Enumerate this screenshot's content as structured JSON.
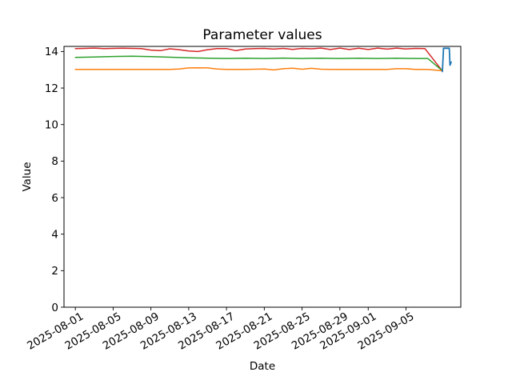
{
  "figure": {
    "background": "#ffffff"
  },
  "chart_data": {
    "type": "line",
    "title": "Parameter values",
    "xlabel": "Date",
    "ylabel": "Value",
    "grid": false,
    "legend": "none",
    "background": "#ffffff",
    "x_axis": {
      "unit": "days_since_2025-08-01",
      "lim": [
        -1.2,
        40.8
      ],
      "tick_rotation_deg": 30,
      "ticks": [
        {
          "label": "2025-08-01",
          "day": 0
        },
        {
          "label": "2025-08-05",
          "day": 4
        },
        {
          "label": "2025-08-09",
          "day": 8
        },
        {
          "label": "2025-08-13",
          "day": 12
        },
        {
          "label": "2025-08-17",
          "day": 16
        },
        {
          "label": "2025-08-21",
          "day": 20
        },
        {
          "label": "2025-08-25",
          "day": 24
        },
        {
          "label": "2025-08-29",
          "day": 28
        },
        {
          "label": "2025-09-01",
          "day": 31
        },
        {
          "label": "2025-09-05",
          "day": 35
        }
      ]
    },
    "y_axis": {
      "lim": [
        0,
        14.28
      ],
      "ticks": [
        0,
        2,
        4,
        6,
        8,
        10,
        12,
        14
      ]
    },
    "series": [
      {
        "name": "red",
        "color": "#d62728",
        "width": 1.5,
        "points": [
          [
            0,
            14.16
          ],
          [
            1,
            14.17
          ],
          [
            2,
            14.19
          ],
          [
            3,
            14.16
          ],
          [
            4,
            14.17
          ],
          [
            5,
            14.18
          ],
          [
            6,
            14.17
          ],
          [
            7,
            14.16
          ],
          [
            8,
            14.08
          ],
          [
            9,
            14.05
          ],
          [
            10,
            14.15
          ],
          [
            11,
            14.1
          ],
          [
            12,
            14.03
          ],
          [
            13,
            14.0
          ],
          [
            14,
            14.1
          ],
          [
            15,
            14.16
          ],
          [
            16,
            14.16
          ],
          [
            17,
            14.05
          ],
          [
            18,
            14.14
          ],
          [
            19,
            14.16
          ],
          [
            20,
            14.17
          ],
          [
            21,
            14.13
          ],
          [
            22,
            14.17
          ],
          [
            23,
            14.12
          ],
          [
            24,
            14.17
          ],
          [
            25,
            14.15
          ],
          [
            26,
            14.19
          ],
          [
            27,
            14.11
          ],
          [
            28,
            14.19
          ],
          [
            29,
            14.11
          ],
          [
            30,
            14.18
          ],
          [
            31,
            14.11
          ],
          [
            32,
            14.19
          ],
          [
            33,
            14.13
          ],
          [
            34,
            14.19
          ],
          [
            35,
            14.14
          ],
          [
            36,
            14.17
          ],
          [
            37,
            14.16
          ],
          [
            38.8,
            12.97
          ]
        ]
      },
      {
        "name": "green",
        "color": "#2ca02c",
        "width": 1.5,
        "points": [
          [
            0,
            13.68
          ],
          [
            2,
            13.7
          ],
          [
            4,
            13.73
          ],
          [
            6,
            13.74
          ],
          [
            8,
            13.72
          ],
          [
            10,
            13.69
          ],
          [
            12,
            13.66
          ],
          [
            14,
            13.63
          ],
          [
            16,
            13.62
          ],
          [
            18,
            13.63
          ],
          [
            20,
            13.62
          ],
          [
            22,
            13.64
          ],
          [
            24,
            13.62
          ],
          [
            26,
            13.63
          ],
          [
            28,
            13.62
          ],
          [
            30,
            13.63
          ],
          [
            32,
            13.62
          ],
          [
            34,
            13.63
          ],
          [
            36,
            13.62
          ],
          [
            37.3,
            13.62
          ],
          [
            38.8,
            12.97
          ]
        ]
      },
      {
        "name": "orange",
        "color": "#ff7f0e",
        "width": 1.5,
        "points": [
          [
            0,
            13.02
          ],
          [
            2,
            13.02
          ],
          [
            4,
            13.02
          ],
          [
            6,
            13.02
          ],
          [
            8,
            13.02
          ],
          [
            10,
            13.02
          ],
          [
            11,
            13.04
          ],
          [
            12,
            13.1
          ],
          [
            13,
            13.11
          ],
          [
            14,
            13.1
          ],
          [
            15,
            13.04
          ],
          [
            16,
            13.02
          ],
          [
            18,
            13.02
          ],
          [
            20,
            13.04
          ],
          [
            21,
            12.99
          ],
          [
            22,
            13.06
          ],
          [
            23,
            13.09
          ],
          [
            24,
            13.03
          ],
          [
            25,
            13.08
          ],
          [
            26,
            13.03
          ],
          [
            27,
            13.02
          ],
          [
            29,
            13.02
          ],
          [
            31,
            13.02
          ],
          [
            33,
            13.02
          ],
          [
            34,
            13.06
          ],
          [
            35,
            13.06
          ],
          [
            36,
            13.02
          ],
          [
            37.3,
            13.02
          ],
          [
            38.8,
            12.95
          ]
        ]
      },
      {
        "name": "blue",
        "color": "#1f77b4",
        "width": 1.8,
        "points": [
          [
            38.85,
            12.9
          ],
          [
            38.97,
            14.18
          ],
          [
            39.58,
            14.18
          ],
          [
            39.66,
            13.25
          ],
          [
            39.78,
            13.42
          ]
        ]
      }
    ]
  }
}
